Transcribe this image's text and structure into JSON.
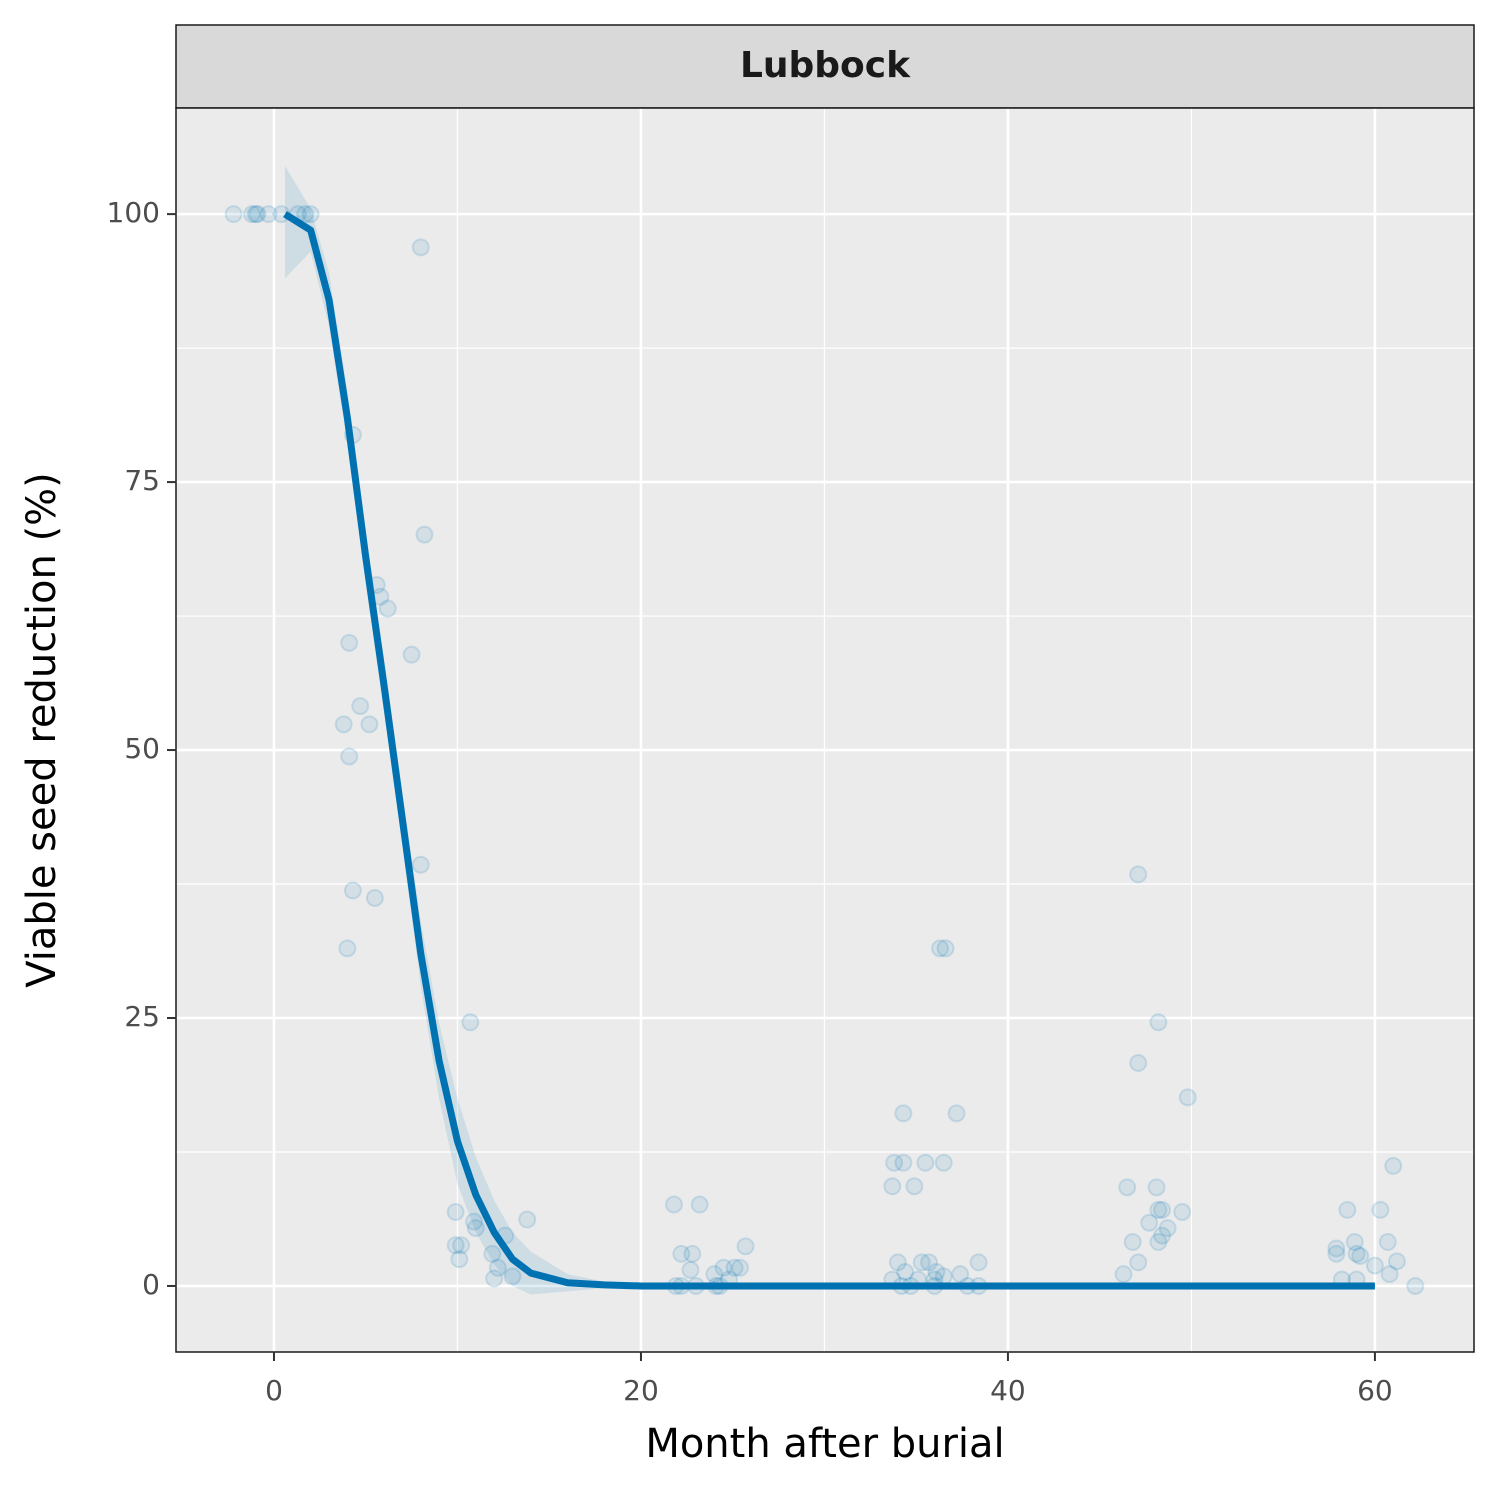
{
  "chart_data": {
    "type": "scatter",
    "facet_label": "Lubbock",
    "x_label": "Month after burial",
    "y_label": "Viable seed reduction (%)",
    "xlim": [
      -5.34,
      65.4
    ],
    "ylim": [
      -6.16,
      109.9
    ],
    "xticks": [
      0,
      20,
      40,
      60
    ],
    "yticks": [
      0,
      25,
      50,
      75,
      100
    ],
    "grid": true,
    "color": "#0072B2",
    "points": {
      "x": [
        -2.2,
        -1.2,
        -1.0,
        -0.9,
        -0.3,
        0.4,
        1.3,
        1.7,
        2.0,
        8.0,
        4.3,
        8.2,
        5.6,
        5.8,
        6.2,
        4.1,
        7.5,
        4.7,
        3.8,
        5.2,
        4.1,
        8.0,
        4.3,
        5.5,
        4.0,
        10.7,
        9.9,
        10.9,
        13.8,
        11.0,
        12.6,
        9.9,
        10.2,
        10.1,
        11.9,
        12.2,
        12.0,
        13.0,
        21.8,
        23.2,
        22.2,
        22.8,
        22.7,
        25.7,
        25.4,
        25.1,
        24.5,
        24.0,
        21.9,
        22.2,
        23.0,
        24.1,
        24.3,
        24.8,
        34.3,
        37.2,
        33.8,
        34.3,
        35.5,
        36.5,
        33.7,
        34.9,
        36.3,
        36.6,
        34.0,
        35.3,
        35.7,
        38.4,
        34.4,
        36.1,
        37.4,
        33.7,
        35.1,
        36.0,
        34.2,
        34.7,
        36.0,
        37.8,
        38.4,
        36.5,
        47.1,
        48.2,
        47.1,
        49.8,
        46.5,
        48.1,
        48.2,
        48.4,
        49.5,
        47.7,
        48.7,
        46.8,
        48.2,
        48.4,
        47.1,
        46.3,
        61.0,
        58.5,
        60.3,
        57.9,
        58.9,
        60.7,
        57.9,
        59.0,
        59.2,
        60.0,
        61.2,
        60.8,
        58.2,
        59.0,
        62.2
      ],
      "y": [
        100,
        100,
        100,
        100,
        100,
        100,
        100,
        100,
        100,
        96.9,
        79.4,
        70.1,
        65.4,
        64.3,
        63.2,
        60.0,
        58.9,
        54.1,
        52.4,
        52.4,
        49.4,
        39.3,
        36.9,
        36.2,
        31.5,
        24.6,
        6.9,
        6.0,
        6.2,
        5.4,
        4.7,
        3.8,
        3.8,
        2.5,
        3.0,
        1.7,
        0.7,
        0.9,
        7.6,
        7.6,
        3.0,
        3.0,
        1.5,
        3.7,
        1.7,
        1.7,
        1.7,
        1.1,
        0,
        0,
        0,
        0,
        0,
        0.6,
        16.1,
        16.1,
        11.5,
        11.5,
        11.5,
        11.5,
        9.3,
        9.3,
        31.5,
        31.5,
        2.2,
        2.2,
        2.2,
        2.2,
        1.3,
        1.3,
        1.1,
        0.6,
        0.6,
        0.6,
        0,
        0,
        0,
        0,
        0,
        0.9,
        38.4,
        24.6,
        20.8,
        17.6,
        9.2,
        9.2,
        7.1,
        7.1,
        6.9,
        5.9,
        5.4,
        4.1,
        4.1,
        4.7,
        2.2,
        1.1,
        11.2,
        7.1,
        7.1,
        3.5,
        4.1,
        4.1,
        3.0,
        3.0,
        2.8,
        1.9,
        2.3,
        1.1,
        0.6,
        0.6,
        0
      ]
    },
    "fit": {
      "x": [
        0.6,
        2,
        3,
        4,
        5,
        6,
        7,
        8,
        9,
        10,
        11,
        12,
        13,
        14,
        16,
        18,
        20,
        30,
        40,
        50,
        60
      ],
      "y": [
        100,
        98.5,
        92,
        81,
        68,
        56,
        43.5,
        31,
        21,
        13.5,
        8.5,
        5,
        2.5,
        1.2,
        0.3,
        0.1,
        0,
        0,
        0,
        0,
        0
      ],
      "lower": [
        94,
        96.5,
        89.5,
        78.5,
        65.5,
        53.5,
        41,
        28,
        17.5,
        9.5,
        5,
        2,
        0,
        -0.8,
        -0.5,
        -0.2,
        0,
        0,
        0,
        0,
        0
      ],
      "upper": [
        104.5,
        100.5,
        94.5,
        83.5,
        70.5,
        58.5,
        46,
        34,
        24.5,
        17.5,
        12,
        8,
        5,
        3.2,
        1.1,
        0.4,
        0,
        0,
        0,
        0,
        0
      ]
    }
  }
}
